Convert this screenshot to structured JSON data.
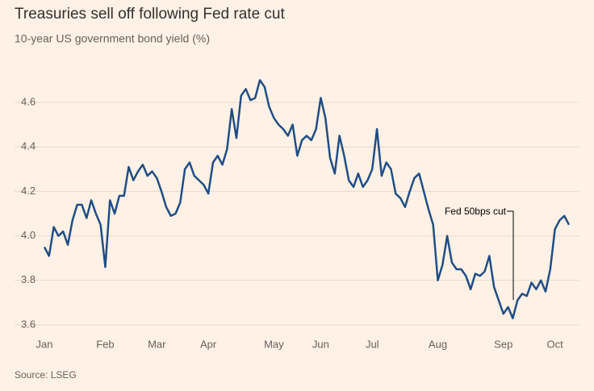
{
  "chart_data": {
    "type": "line",
    "title": "Treasuries sell off following Fed rate cut",
    "subtitle": "10-year US government bond yield (%)",
    "source": "Source: LSEG",
    "annotation": "Fed 50bps cut",
    "categories": [
      "Jan",
      null,
      null,
      null,
      null,
      null,
      null,
      null,
      null,
      null,
      null,
      null,
      null,
      "Feb",
      null,
      null,
      null,
      null,
      null,
      null,
      null,
      null,
      null,
      null,
      "Mar",
      null,
      null,
      null,
      null,
      null,
      null,
      null,
      null,
      null,
      null,
      "Apr",
      null,
      null,
      null,
      null,
      null,
      null,
      null,
      null,
      null,
      null,
      null,
      null,
      null,
      "May",
      null,
      null,
      null,
      null,
      null,
      null,
      null,
      null,
      null,
      "Jun",
      null,
      null,
      null,
      null,
      null,
      null,
      null,
      null,
      null,
      null,
      "Jul",
      null,
      null,
      null,
      null,
      null,
      null,
      null,
      null,
      null,
      null,
      null,
      null,
      null,
      "Aug",
      null,
      null,
      null,
      null,
      null,
      null,
      null,
      null,
      null,
      null,
      null,
      null,
      null,
      "Sep",
      null,
      null,
      null,
      null,
      null,
      null,
      null,
      null,
      null,
      null,
      "Oct",
      null,
      null,
      null
    ],
    "series": [
      {
        "name": "10-year US government bond yield",
        "color": "#1f4e85",
        "values": [
          3.95,
          3.91,
          4.04,
          4.0,
          4.02,
          3.96,
          4.07,
          4.14,
          4.14,
          4.08,
          4.16,
          4.1,
          4.05,
          3.86,
          4.16,
          4.1,
          4.18,
          4.18,
          4.31,
          4.25,
          4.29,
          4.32,
          4.27,
          4.29,
          4.26,
          4.2,
          4.13,
          4.09,
          4.1,
          4.15,
          4.3,
          4.33,
          4.27,
          4.25,
          4.23,
          4.19,
          4.33,
          4.36,
          4.32,
          4.39,
          4.57,
          4.44,
          4.63,
          4.66,
          4.61,
          4.62,
          4.7,
          4.67,
          4.58,
          4.53,
          4.5,
          4.48,
          4.45,
          4.5,
          4.36,
          4.43,
          4.45,
          4.43,
          4.48,
          4.62,
          4.53,
          4.35,
          4.28,
          4.45,
          4.36,
          4.25,
          4.22,
          4.28,
          4.22,
          4.25,
          4.3,
          4.48,
          4.27,
          4.33,
          4.3,
          4.19,
          4.17,
          4.13,
          4.2,
          4.26,
          4.28,
          4.2,
          4.12,
          4.05,
          3.8,
          3.87,
          4.0,
          3.88,
          3.85,
          3.85,
          3.82,
          3.76,
          3.83,
          3.82,
          3.84,
          3.91,
          3.77,
          3.71,
          3.65,
          3.68,
          3.63,
          3.71,
          3.74,
          3.73,
          3.79,
          3.76,
          3.8,
          3.75,
          3.85,
          4.03,
          4.07,
          4.09,
          4.05
        ]
      }
    ],
    "ylim": [
      3.55,
      4.75
    ],
    "yticks": [
      3.6,
      3.8,
      {
        "value": 4,
        "label": "4.0"
      },
      4.2,
      4.4,
      4.6
    ],
    "grid": true
  }
}
